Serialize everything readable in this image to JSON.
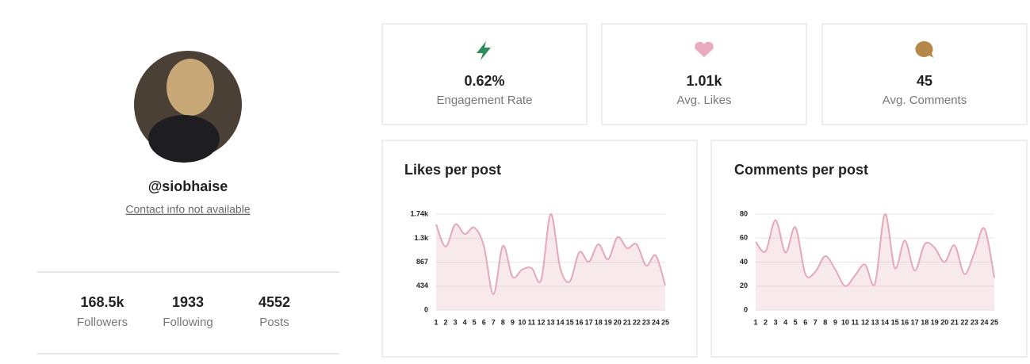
{
  "profile": {
    "username": "@siobhaise",
    "contact": "Contact info not available",
    "stats": [
      {
        "value": "168.5k",
        "label": "Followers"
      },
      {
        "value": 1933,
        "label": "Following"
      },
      {
        "value": 4552,
        "label": "Posts"
      }
    ]
  },
  "summary": [
    {
      "value": "0.62%",
      "label": "Engagement Rate"
    },
    {
      "value": "1.01k",
      "label": "Avg. Likes"
    },
    {
      "value": 45,
      "label": "Avg. Comments"
    }
  ],
  "chart_data": [
    {
      "type": "area",
      "title": "Likes per post",
      "color": "#e4a9b8",
      "categories": [
        1,
        2,
        3,
        4,
        5,
        6,
        7,
        8,
        9,
        10,
        11,
        12,
        13,
        14,
        15,
        16,
        17,
        18,
        19,
        20,
        21,
        22,
        23,
        24,
        25
      ],
      "values": [
        1553,
        1150,
        1553,
        1380,
        1495,
        1165,
        288,
        1165,
        604,
        733,
        762,
        546,
        1740,
        762,
        518,
        1050,
        877,
        1194,
        920,
        1323,
        1122,
        1194,
        805,
        992,
        446
      ],
      "ylim": [
        0,
        1740
      ],
      "yticks": [
        0,
        434,
        867,
        {
          "value": 1300,
          "label": "1.3k"
        },
        {
          "value": 1740,
          "label": "1.74k"
        }
      ],
      "grid": true
    },
    {
      "type": "area",
      "title": "Comments per post",
      "color": "#e4a9b8",
      "categories": [
        1,
        2,
        3,
        4,
        5,
        6,
        7,
        8,
        9,
        10,
        11,
        12,
        13,
        14,
        15,
        16,
        17,
        18,
        19,
        20,
        21,
        22,
        23,
        24,
        25
      ],
      "values": [
        57,
        49,
        75,
        48,
        69,
        30,
        32,
        45,
        34,
        20,
        29,
        38,
        22,
        80,
        35,
        58,
        33,
        55,
        52,
        40,
        54,
        30,
        48,
        68,
        27
      ],
      "ylim": [
        0,
        80
      ],
      "yticks": [
        0,
        20,
        40,
        60,
        80
      ],
      "grid": true
    }
  ]
}
